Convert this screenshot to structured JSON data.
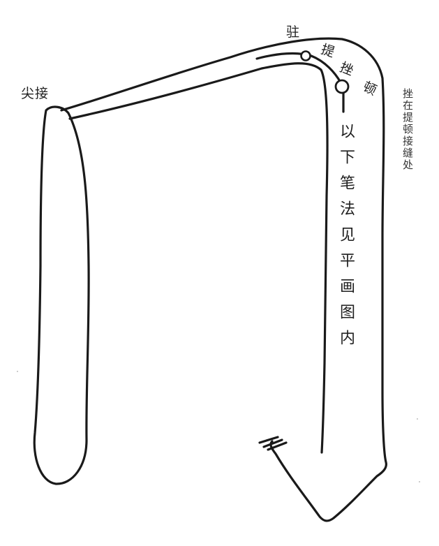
{
  "labels": {
    "zhu": "驻",
    "ti": "提",
    "cuo": "挫",
    "dun": "顿",
    "jian_jie": "尖接"
  },
  "notes": {
    "main": "以下笔法见平画图内",
    "side": "挫在提顿接缝处"
  },
  "colors": {
    "ink": "#1a1a1a",
    "paper": "#ffffff"
  }
}
